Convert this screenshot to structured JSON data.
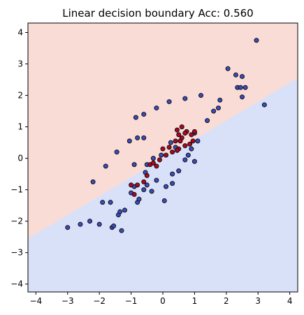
{
  "chart_data": {
    "type": "scatter",
    "title": "Linear decision boundary  Acc: 0.560",
    "xlabel": "",
    "ylabel": "",
    "xlim": [
      -4.25,
      4.25
    ],
    "ylim": [
      -4.25,
      4.3
    ],
    "xticks": [
      -4,
      -3,
      -2,
      -1,
      0,
      1,
      2,
      3,
      4
    ],
    "yticks": [
      -4,
      -3,
      -2,
      -1,
      0,
      1,
      2,
      3,
      4
    ],
    "grid": false,
    "decision_boundary": {
      "slope": 0.6,
      "intercept": 0.0
    },
    "colors": {
      "upper_region": "#f9dcd6",
      "lower_region": "#d9e1f8",
      "class_red": "#b40426",
      "class_blue": "#3b4cc0"
    },
    "series": [
      {
        "class": "blue",
        "points": [
          [
            -2.6,
            -2.1
          ],
          [
            -2.3,
            -2.0
          ],
          [
            -2.0,
            -2.1
          ],
          [
            -1.9,
            -1.4
          ],
          [
            -1.65,
            -1.4
          ],
          [
            -1.6,
            -2.2
          ],
          [
            -1.55,
            -2.15
          ],
          [
            -1.4,
            -1.8
          ],
          [
            -1.35,
            -1.7
          ],
          [
            -1.3,
            -2.3
          ],
          [
            -1.2,
            -1.65
          ],
          [
            -1.0,
            -1.1
          ],
          [
            -0.8,
            -1.4
          ],
          [
            -0.75,
            -1.3
          ],
          [
            -0.6,
            -1.0
          ],
          [
            -0.5,
            -0.85
          ],
          [
            -0.35,
            -1.05
          ],
          [
            -0.2,
            -0.7
          ],
          [
            0.05,
            -1.35
          ],
          [
            0.1,
            -0.9
          ],
          [
            0.3,
            -0.5
          ],
          [
            0.3,
            -0.8
          ],
          [
            0.5,
            -0.4
          ],
          [
            0.7,
            -0.05
          ],
          [
            0.8,
            0.1
          ],
          [
            1.0,
            -0.1
          ],
          [
            1.1,
            0.55
          ],
          [
            0.4,
            0.35
          ],
          [
            -0.9,
            -0.9
          ],
          [
            -3.0,
            -2.2
          ],
          [
            -2.2,
            -0.75
          ],
          [
            -1.8,
            -0.25
          ],
          [
            -1.45,
            0.2
          ],
          [
            -1.05,
            0.55
          ],
          [
            -0.8,
            0.65
          ],
          [
            -0.6,
            0.65
          ],
          [
            -0.5,
            -0.2
          ],
          [
            -0.3,
            0.0
          ],
          [
            -0.05,
            0.1
          ],
          [
            0.25,
            0.5
          ],
          [
            -0.9,
            -0.2
          ],
          [
            -0.55,
            -0.45
          ],
          [
            -0.85,
            1.3
          ],
          [
            -0.6,
            1.4
          ],
          [
            -0.2,
            1.6
          ],
          [
            0.2,
            1.8
          ],
          [
            0.7,
            1.9
          ],
          [
            1.2,
            2.0
          ],
          [
            1.4,
            1.2
          ],
          [
            1.6,
            1.5
          ],
          [
            1.8,
            1.85
          ],
          [
            2.05,
            2.85
          ],
          [
            2.3,
            2.65
          ],
          [
            2.35,
            2.25
          ],
          [
            2.5,
            2.6
          ],
          [
            2.5,
            1.95
          ],
          [
            2.45,
            2.25
          ],
          [
            2.6,
            2.25
          ],
          [
            2.95,
            3.75
          ],
          [
            3.2,
            1.7
          ],
          [
            1.75,
            1.6
          ],
          [
            1.0,
            0.8
          ],
          [
            0.9,
            0.3
          ]
        ]
      },
      {
        "class": "red",
        "points": [
          [
            -1.0,
            -0.85
          ],
          [
            -0.9,
            -1.15
          ],
          [
            -0.8,
            -0.85
          ],
          [
            -0.6,
            -0.75
          ],
          [
            -0.5,
            -0.55
          ],
          [
            -0.4,
            -0.2
          ],
          [
            -0.3,
            -0.15
          ],
          [
            -0.2,
            -0.25
          ],
          [
            -0.1,
            -0.05
          ],
          [
            0.0,
            0.3
          ],
          [
            0.1,
            0.1
          ],
          [
            0.2,
            0.35
          ],
          [
            0.3,
            0.2
          ],
          [
            0.4,
            0.55
          ],
          [
            0.45,
            0.9
          ],
          [
            0.5,
            0.75
          ],
          [
            0.5,
            0.3
          ],
          [
            0.6,
            1.0
          ],
          [
            0.6,
            0.65
          ],
          [
            0.7,
            0.4
          ],
          [
            0.75,
            0.85
          ],
          [
            0.85,
            0.45
          ],
          [
            0.9,
            0.75
          ],
          [
            0.95,
            0.55
          ],
          [
            1.0,
            0.85
          ],
          [
            0.45,
            0.25
          ],
          [
            0.55,
            0.55
          ],
          [
            0.7,
            0.8
          ]
        ]
      }
    ]
  }
}
